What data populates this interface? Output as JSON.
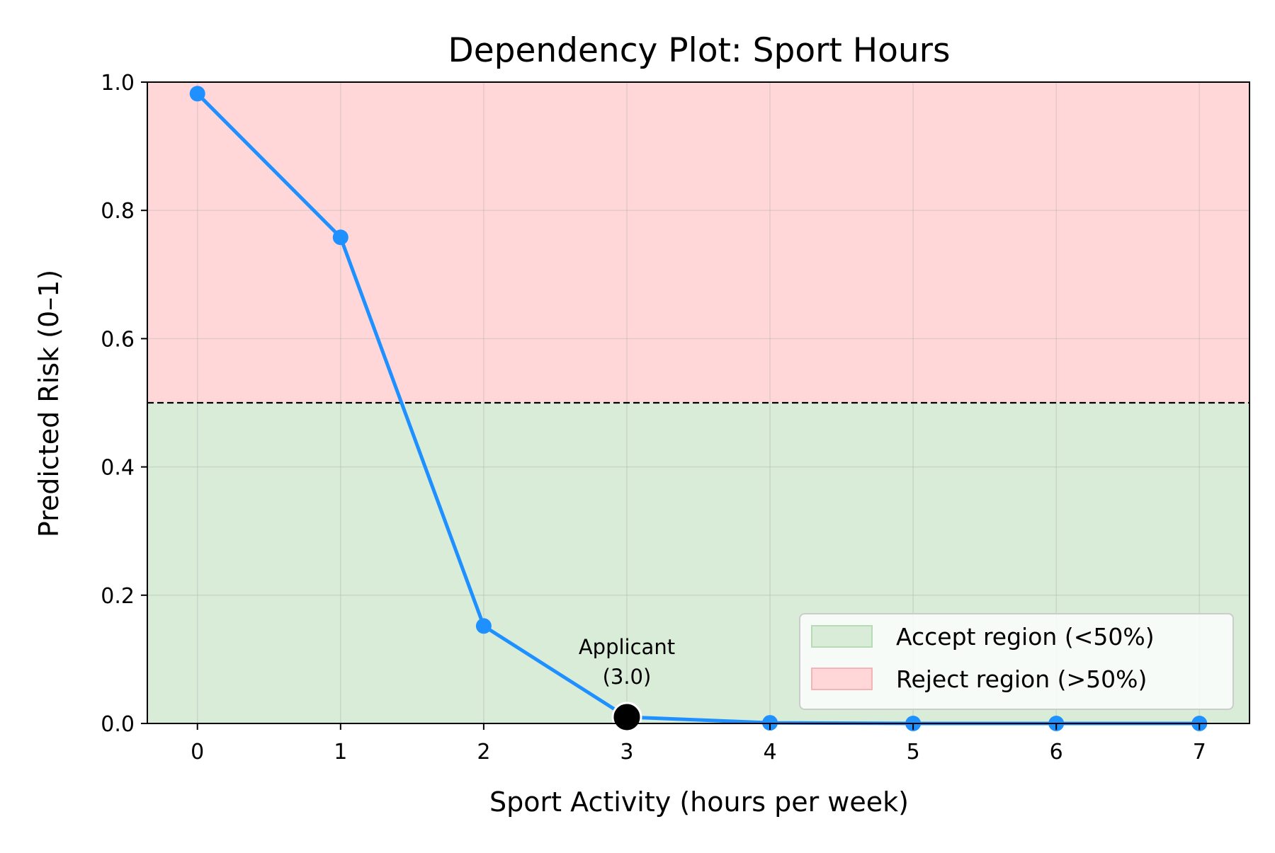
{
  "chart_data": {
    "type": "line",
    "title": "Dependency Plot: Sport Hours",
    "xlabel": "Sport Activity (hours per week)",
    "ylabel": "Predicted Risk (0–1)",
    "xlim": [
      -0.35,
      7.35
    ],
    "ylim": [
      0,
      1
    ],
    "x_ticks": [
      0,
      1,
      2,
      3,
      4,
      5,
      6,
      7
    ],
    "y_ticks": [
      "0.0",
      "0.2",
      "0.4",
      "0.6",
      "0.8",
      "1.0"
    ],
    "grid": true,
    "series": [
      {
        "x": [
          0,
          1,
          2,
          3,
          4,
          5,
          6,
          7
        ],
        "values": [
          0.982,
          0.758,
          0.152,
          0.01,
          0.001,
          0.0,
          0.0,
          0.0
        ],
        "color": "#1e90ff"
      }
    ],
    "threshold": {
      "y": 0.5,
      "style": "dashed",
      "color": "#000000"
    },
    "regions": [
      {
        "label": "Accept region (<50%)",
        "y_range": [
          0,
          0.5
        ],
        "color": "#d8ecd8"
      },
      {
        "label": "Reject region (>50%)",
        "y_range": [
          0.5,
          1.0
        ],
        "color": "#ffd7d8"
      }
    ],
    "applicant_point": {
      "x": 3,
      "y": 0.01,
      "color": "#000000"
    },
    "annotation": {
      "lines": [
        "Applicant",
        "(3.0)"
      ],
      "x": 3,
      "y": 0.01
    },
    "legend": {
      "position": "lower-right",
      "entries": [
        {
          "label": "Accept region (<50%)",
          "color": "#d8ecd8",
          "edge": "#b6dbb6"
        },
        {
          "label": "Reject region (>50%)",
          "color": "#ffd7d8",
          "edge": "#f5b3b5"
        }
      ]
    }
  }
}
